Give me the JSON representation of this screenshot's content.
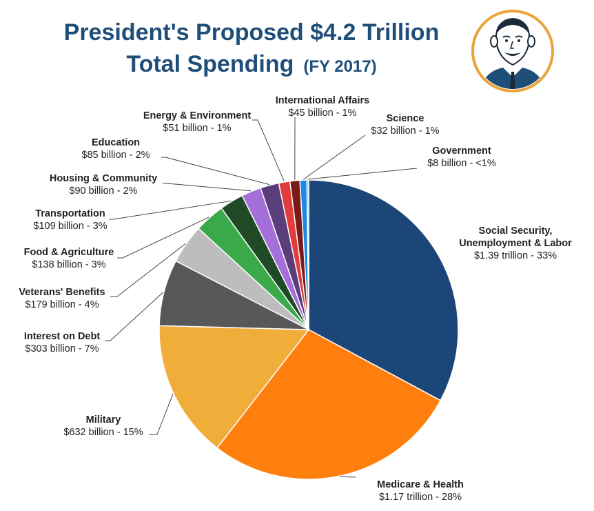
{
  "title": {
    "line1": "President's Proposed $4.2 Trillion",
    "line2": "Total Spending",
    "fiscal_year": "(FY 2017)"
  },
  "colors": {
    "title": "#1f4e79",
    "portrait_ring": "#e8a33a"
  },
  "chart_data": {
    "type": "pie",
    "title": "President's Proposed $4.2 Trillion Total Spending (FY 2017)",
    "total": "$4.2 Trillion",
    "slices": [
      {
        "name": "Social Security, Unemployment & Labor",
        "amount_billions": 1390,
        "value_label": "$1.39 trillion - 33%",
        "percent": 33,
        "color": "#1b4677"
      },
      {
        "name": "Medicare & Health",
        "amount_billions": 1170,
        "value_label": "$1.17 trillion - 28%",
        "percent": 28,
        "color": "#ff7f0e"
      },
      {
        "name": "Military",
        "amount_billions": 632,
        "value_label": "$632 billion - 15%",
        "percent": 15,
        "color": "#f0ad3a"
      },
      {
        "name": "Interest on Debt",
        "amount_billions": 303,
        "value_label": "$303 billion - 7%",
        "percent": 7,
        "color": "#585858"
      },
      {
        "name": "Veterans' Benefits",
        "amount_billions": 179,
        "value_label": "$179 billion - 4%",
        "percent": 4,
        "color": "#bdbdbd"
      },
      {
        "name": "Food & Agriculture",
        "amount_billions": 138,
        "value_label": "$138 billion - 3%",
        "percent": 3,
        "color": "#3aa94a"
      },
      {
        "name": "Transportation",
        "amount_billions": 109,
        "value_label": "$109 billion - 3%",
        "percent": 3,
        "color": "#1f4a25"
      },
      {
        "name": "Housing & Community",
        "amount_billions": 90,
        "value_label": "$90 billion - 2%",
        "percent": 2,
        "color": "#a56fd9"
      },
      {
        "name": "Education",
        "amount_billions": 85,
        "value_label": "$85 billion - 2%",
        "percent": 2,
        "color": "#5a3d7a"
      },
      {
        "name": "Energy & Environment",
        "amount_billions": 51,
        "value_label": "$51 billion - 1%",
        "percent": 1,
        "color": "#e03c3c"
      },
      {
        "name": "International Affairs",
        "amount_billions": 45,
        "value_label": "$45 billion - 1%",
        "percent": 1,
        "color": "#7a1a1a"
      },
      {
        "name": "Science",
        "amount_billions": 32,
        "value_label": "$32 billion - 1%",
        "percent": 1,
        "color": "#1e88e5"
      },
      {
        "name": "Government",
        "amount_billions": 8,
        "value_label": "$8 billion - <1%",
        "percent": 0.2,
        "color": "#4fc3f7"
      }
    ]
  }
}
